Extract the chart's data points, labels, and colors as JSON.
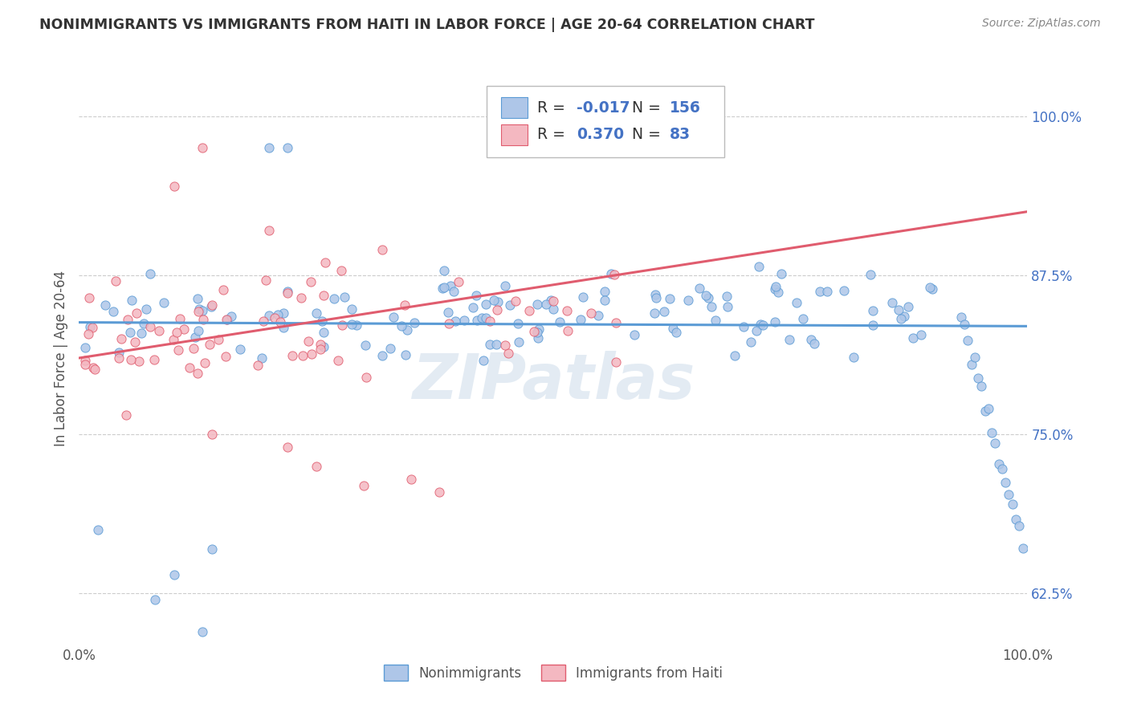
{
  "title": "NONIMMIGRANTS VS IMMIGRANTS FROM HAITI IN LABOR FORCE | AGE 20-64 CORRELATION CHART",
  "source_text": "Source: ZipAtlas.com",
  "ylabel": "In Labor Force | Age 20-64",
  "xlim": [
    0.0,
    1.0
  ],
  "ylim": [
    0.585,
    1.035
  ],
  "yticks": [
    0.625,
    0.75,
    0.875,
    1.0
  ],
  "ytick_labels": [
    "62.5%",
    "75.0%",
    "87.5%",
    "100.0%"
  ],
  "xticks": [
    0.0,
    1.0
  ],
  "xtick_labels": [
    "0.0%",
    "100.0%"
  ],
  "series1_color": "#aec6e8",
  "series1_edge": "#5b9bd5",
  "series2_color": "#f4b8c1",
  "series2_edge": "#e05c6e",
  "trendline1_color": "#5b9bd5",
  "trendline2_color": "#e05c6e",
  "legend_R1": "-0.017",
  "legend_N1": "156",
  "legend_R2": "0.370",
  "legend_N2": "83",
  "legend_label1": "Nonimmigrants",
  "legend_label2": "Immigrants from Haiti",
  "watermark": "ZIPatlas",
  "background_color": "#ffffff",
  "grid_color": "#cccccc",
  "trendline1_x0": 0.0,
  "trendline1_y0": 0.838,
  "trendline1_x1": 1.0,
  "trendline1_y1": 0.835,
  "trendline2_x0": 0.0,
  "trendline2_y0": 0.81,
  "trendline2_x1": 1.0,
  "trendline2_y1": 0.925
}
